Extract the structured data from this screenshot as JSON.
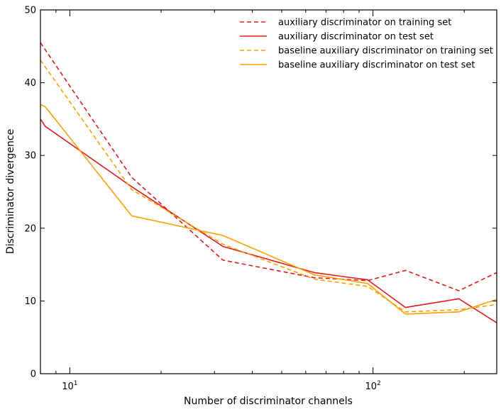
{
  "chart_data": {
    "type": "line",
    "title": "",
    "xlabel": "Number of discriminator channels",
    "ylabel": "Discriminator divergence",
    "xscale": "log",
    "xlim": [
      8,
      256
    ],
    "ylim": [
      0,
      50
    ],
    "yticks": [
      0,
      10,
      20,
      30,
      40,
      50
    ],
    "xticks": [
      {
        "value": 10,
        "base": "10",
        "exponent": "1"
      },
      {
        "value": 100,
        "base": "10",
        "exponent": "2"
      }
    ],
    "legend_position": "top-right",
    "series": [
      {
        "name": "auxiliary discriminator on training set",
        "color": "#e41a1c",
        "dash": "dashed",
        "x": [
          8,
          16,
          32,
          64,
          96,
          128,
          192,
          256
        ],
        "y": [
          45.5,
          27.0,
          15.6,
          13.2,
          12.8,
          14.2,
          11.4,
          13.9
        ]
      },
      {
        "name": "auxiliary discriminator on test set",
        "color": "#e41a1c",
        "dash": "solid",
        "x": [
          8,
          8.3,
          16,
          32,
          64,
          96,
          128,
          192,
          256
        ],
        "y": [
          35.0,
          34.0,
          25.7,
          17.5,
          13.9,
          12.9,
          9.1,
          10.3,
          7.0
        ]
      },
      {
        "name": "baseline auxiliary discriminator on training set",
        "color": "#ff9f00",
        "dash": "dashed",
        "x": [
          8,
          16,
          32,
          64,
          96,
          128,
          192,
          256
        ],
        "y": [
          43.1,
          25.3,
          17.8,
          13.0,
          12.0,
          8.5,
          8.8,
          9.5
        ]
      },
      {
        "name": "baseline auxiliary discriminator on test set",
        "color": "#ff9f00",
        "dash": "solid",
        "x": [
          8,
          8.3,
          16,
          32,
          64,
          96,
          128,
          192,
          256
        ],
        "y": [
          37.0,
          36.7,
          21.7,
          19.0,
          13.6,
          12.4,
          8.2,
          8.5,
          10.2
        ]
      }
    ]
  }
}
